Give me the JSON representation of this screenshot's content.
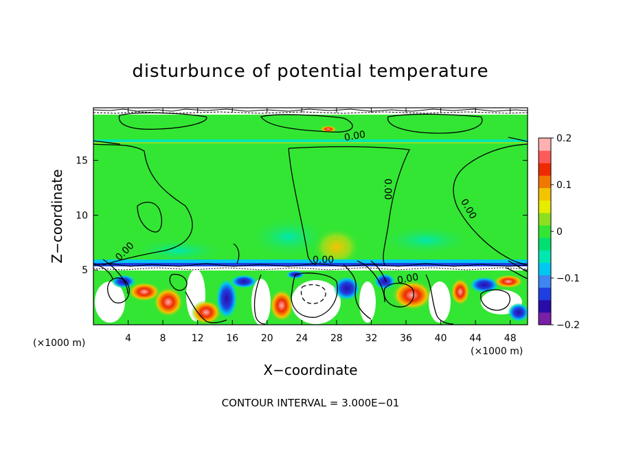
{
  "chart_data": {
    "type": "heatmap",
    "title": "disturbunce of potential temperature",
    "xlabel": "X−coordinate",
    "ylabel": "Z−coordinate",
    "x_unit": "(×1000 m)",
    "y_unit": "(×1000 m)",
    "xlim": [
      0,
      50
    ],
    "ylim": [
      0,
      19.8
    ],
    "x_ticks": [
      4,
      8,
      12,
      16,
      20,
      24,
      28,
      32,
      36,
      40,
      44,
      48
    ],
    "y_ticks": [
      5,
      10,
      15
    ],
    "colorbar": {
      "range": [
        -0.2,
        0.2
      ],
      "ticks": [
        {
          "value": 0.2,
          "label": "0.2"
        },
        {
          "value": 0.1,
          "label": "0.1"
        },
        {
          "value": 0.0,
          "label": "0"
        },
        {
          "value": -0.1,
          "label": "−0.1"
        },
        {
          "value": -0.2,
          "label": "−0.2"
        }
      ],
      "colors": [
        "#7a1fa8",
        "#2a0ca8",
        "#1e3fe0",
        "#3f86f0",
        "#00c8f0",
        "#00e8b0",
        "#00e070",
        "#33e633",
        "#8de020",
        "#e6ec00",
        "#f5c400",
        "#f07800",
        "#ef2a00",
        "#ff5a5a",
        "#ffb0b0"
      ]
    },
    "contour_labels": [
      "0.00",
      "0.00",
      "0.00",
      "0.00",
      "0.00",
      "0.00"
    ],
    "footer": "CONTOUR INTERVAL = 3.000E−01"
  }
}
